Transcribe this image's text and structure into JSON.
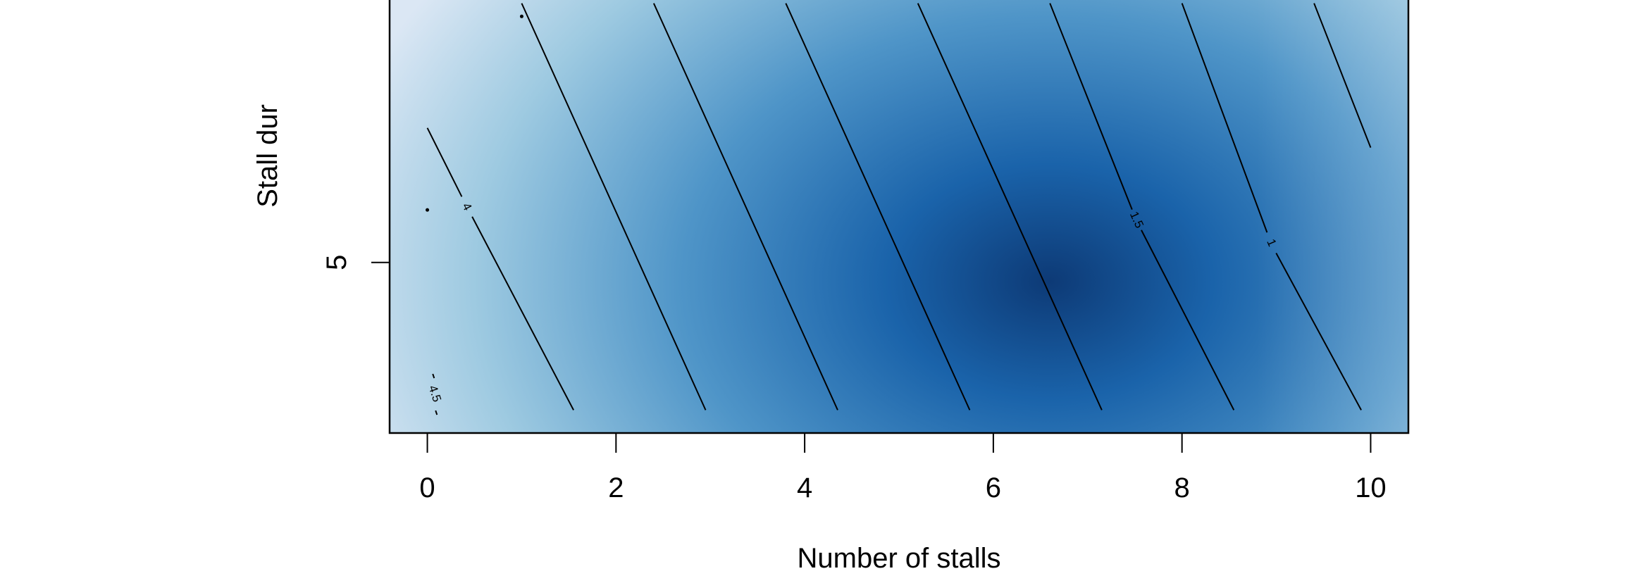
{
  "chart_data": {
    "type": "heatmap",
    "title": "",
    "xlabel": "Number of stalls",
    "ylabel": "Stall duration",
    "ylabel_visible": "Stall dur",
    "xlim": [
      -0.4,
      10.4
    ],
    "ylim": [
      2.4,
      9.0
    ],
    "x_ticks": [
      0,
      2,
      4,
      6,
      8,
      10
    ],
    "x_tick_labels": [
      "0",
      "2",
      "4",
      "6",
      "8",
      "10"
    ],
    "y_ticks": [
      5
    ],
    "y_tick_labels": [
      "5"
    ],
    "colormap": [
      "#dbe7f4",
      "#9ecae1",
      "#4f95c8",
      "#1a63aa",
      "#0d3a76"
    ],
    "grid": false,
    "contours": [
      {
        "x1": 0.0,
        "y1": 7.05,
        "x2": 1.55,
        "y2": 2.75,
        "label": "4",
        "label_x": 0.42,
        "label_y": 5.85
      },
      {
        "x1": 1.0,
        "y1": 8.95,
        "x2": 2.95,
        "y2": 2.75,
        "label": ""
      },
      {
        "x1": 2.4,
        "y1": 8.95,
        "x2": 4.35,
        "y2": 2.75,
        "label": ""
      },
      {
        "x1": 3.8,
        "y1": 8.95,
        "x2": 5.75,
        "y2": 2.75,
        "label": ""
      },
      {
        "x1": 5.2,
        "y1": 8.95,
        "x2": 7.15,
        "y2": 2.75,
        "label": ""
      },
      {
        "x1": 6.6,
        "y1": 8.95,
        "x2": 8.55,
        "y2": 2.75,
        "label": "1.5",
        "label_x": 7.52,
        "label_y": 5.65
      },
      {
        "x1": 8.0,
        "y1": 8.95,
        "x2": 9.9,
        "y2": 2.75,
        "label": "1",
        "label_x": 8.95,
        "label_y": 5.3
      },
      {
        "x1": 9.4,
        "y1": 8.95,
        "x2": 10.0,
        "y2": 6.75,
        "label": ""
      }
    ],
    "annotations": [
      {
        "text": "4.5",
        "x": 0.08,
        "y": 3.0
      },
      {
        "text": ".",
        "x": 0.0,
        "y": 5.8
      },
      {
        "text": ".",
        "x": 1.0,
        "y": 8.75
      }
    ]
  }
}
